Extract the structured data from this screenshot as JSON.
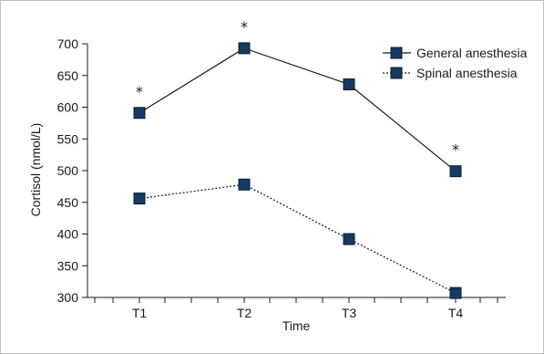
{
  "chart_data": {
    "type": "line",
    "title": "",
    "xlabel": "Time",
    "ylabel": "Cortisol (nmol/L)",
    "categories": [
      "T1",
      "T2",
      "T3",
      "T4"
    ],
    "ylim": [
      300,
      700
    ],
    "yticks": [
      300,
      350,
      400,
      450,
      500,
      550,
      600,
      650,
      700
    ],
    "grid": false,
    "legend_position": "top-right",
    "series": [
      {
        "name": "General anesthesia",
        "values": [
          591,
          693,
          636,
          499
        ],
        "line_style": "solid",
        "marker": "square",
        "color": "#163a62"
      },
      {
        "name": "Spinal anesthesia",
        "values": [
          456,
          478,
          392,
          307
        ],
        "line_style": "dotted",
        "marker": "square",
        "color": "#163a62"
      }
    ],
    "annotations": [
      {
        "text": "*",
        "category": "T1"
      },
      {
        "text": "*",
        "category": "T2"
      },
      {
        "text": "*",
        "category": "T4"
      }
    ]
  }
}
